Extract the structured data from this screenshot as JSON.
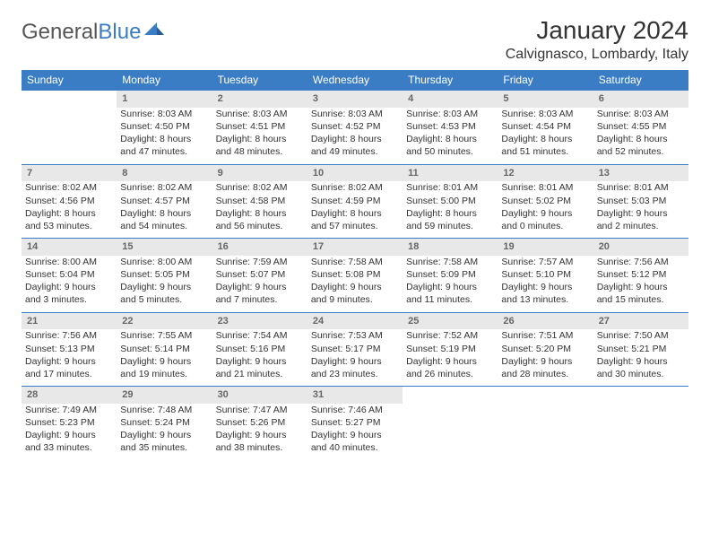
{
  "logo": {
    "part1": "General",
    "part2": "Blue"
  },
  "title": "January 2024",
  "location": "Calvignasco, Lombardy, Italy",
  "header_color": "#3b7dc4",
  "daynum_bg": "#e8e8e8",
  "border_color": "#3b7dc4",
  "weekdays": [
    "Sunday",
    "Monday",
    "Tuesday",
    "Wednesday",
    "Thursday",
    "Friday",
    "Saturday"
  ],
  "weeks": [
    [
      null,
      {
        "n": "1",
        "sr": "Sunrise: 8:03 AM",
        "ss": "Sunset: 4:50 PM",
        "d1": "Daylight: 8 hours",
        "d2": "and 47 minutes."
      },
      {
        "n": "2",
        "sr": "Sunrise: 8:03 AM",
        "ss": "Sunset: 4:51 PM",
        "d1": "Daylight: 8 hours",
        "d2": "and 48 minutes."
      },
      {
        "n": "3",
        "sr": "Sunrise: 8:03 AM",
        "ss": "Sunset: 4:52 PM",
        "d1": "Daylight: 8 hours",
        "d2": "and 49 minutes."
      },
      {
        "n": "4",
        "sr": "Sunrise: 8:03 AM",
        "ss": "Sunset: 4:53 PM",
        "d1": "Daylight: 8 hours",
        "d2": "and 50 minutes."
      },
      {
        "n": "5",
        "sr": "Sunrise: 8:03 AM",
        "ss": "Sunset: 4:54 PM",
        "d1": "Daylight: 8 hours",
        "d2": "and 51 minutes."
      },
      {
        "n": "6",
        "sr": "Sunrise: 8:03 AM",
        "ss": "Sunset: 4:55 PM",
        "d1": "Daylight: 8 hours",
        "d2": "and 52 minutes."
      }
    ],
    [
      {
        "n": "7",
        "sr": "Sunrise: 8:02 AM",
        "ss": "Sunset: 4:56 PM",
        "d1": "Daylight: 8 hours",
        "d2": "and 53 minutes."
      },
      {
        "n": "8",
        "sr": "Sunrise: 8:02 AM",
        "ss": "Sunset: 4:57 PM",
        "d1": "Daylight: 8 hours",
        "d2": "and 54 minutes."
      },
      {
        "n": "9",
        "sr": "Sunrise: 8:02 AM",
        "ss": "Sunset: 4:58 PM",
        "d1": "Daylight: 8 hours",
        "d2": "and 56 minutes."
      },
      {
        "n": "10",
        "sr": "Sunrise: 8:02 AM",
        "ss": "Sunset: 4:59 PM",
        "d1": "Daylight: 8 hours",
        "d2": "and 57 minutes."
      },
      {
        "n": "11",
        "sr": "Sunrise: 8:01 AM",
        "ss": "Sunset: 5:00 PM",
        "d1": "Daylight: 8 hours",
        "d2": "and 59 minutes."
      },
      {
        "n": "12",
        "sr": "Sunrise: 8:01 AM",
        "ss": "Sunset: 5:02 PM",
        "d1": "Daylight: 9 hours",
        "d2": "and 0 minutes."
      },
      {
        "n": "13",
        "sr": "Sunrise: 8:01 AM",
        "ss": "Sunset: 5:03 PM",
        "d1": "Daylight: 9 hours",
        "d2": "and 2 minutes."
      }
    ],
    [
      {
        "n": "14",
        "sr": "Sunrise: 8:00 AM",
        "ss": "Sunset: 5:04 PM",
        "d1": "Daylight: 9 hours",
        "d2": "and 3 minutes."
      },
      {
        "n": "15",
        "sr": "Sunrise: 8:00 AM",
        "ss": "Sunset: 5:05 PM",
        "d1": "Daylight: 9 hours",
        "d2": "and 5 minutes."
      },
      {
        "n": "16",
        "sr": "Sunrise: 7:59 AM",
        "ss": "Sunset: 5:07 PM",
        "d1": "Daylight: 9 hours",
        "d2": "and 7 minutes."
      },
      {
        "n": "17",
        "sr": "Sunrise: 7:58 AM",
        "ss": "Sunset: 5:08 PM",
        "d1": "Daylight: 9 hours",
        "d2": "and 9 minutes."
      },
      {
        "n": "18",
        "sr": "Sunrise: 7:58 AM",
        "ss": "Sunset: 5:09 PM",
        "d1": "Daylight: 9 hours",
        "d2": "and 11 minutes."
      },
      {
        "n": "19",
        "sr": "Sunrise: 7:57 AM",
        "ss": "Sunset: 5:10 PM",
        "d1": "Daylight: 9 hours",
        "d2": "and 13 minutes."
      },
      {
        "n": "20",
        "sr": "Sunrise: 7:56 AM",
        "ss": "Sunset: 5:12 PM",
        "d1": "Daylight: 9 hours",
        "d2": "and 15 minutes."
      }
    ],
    [
      {
        "n": "21",
        "sr": "Sunrise: 7:56 AM",
        "ss": "Sunset: 5:13 PM",
        "d1": "Daylight: 9 hours",
        "d2": "and 17 minutes."
      },
      {
        "n": "22",
        "sr": "Sunrise: 7:55 AM",
        "ss": "Sunset: 5:14 PM",
        "d1": "Daylight: 9 hours",
        "d2": "and 19 minutes."
      },
      {
        "n": "23",
        "sr": "Sunrise: 7:54 AM",
        "ss": "Sunset: 5:16 PM",
        "d1": "Daylight: 9 hours",
        "d2": "and 21 minutes."
      },
      {
        "n": "24",
        "sr": "Sunrise: 7:53 AM",
        "ss": "Sunset: 5:17 PM",
        "d1": "Daylight: 9 hours",
        "d2": "and 23 minutes."
      },
      {
        "n": "25",
        "sr": "Sunrise: 7:52 AM",
        "ss": "Sunset: 5:19 PM",
        "d1": "Daylight: 9 hours",
        "d2": "and 26 minutes."
      },
      {
        "n": "26",
        "sr": "Sunrise: 7:51 AM",
        "ss": "Sunset: 5:20 PM",
        "d1": "Daylight: 9 hours",
        "d2": "and 28 minutes."
      },
      {
        "n": "27",
        "sr": "Sunrise: 7:50 AM",
        "ss": "Sunset: 5:21 PM",
        "d1": "Daylight: 9 hours",
        "d2": "and 30 minutes."
      }
    ],
    [
      {
        "n": "28",
        "sr": "Sunrise: 7:49 AM",
        "ss": "Sunset: 5:23 PM",
        "d1": "Daylight: 9 hours",
        "d2": "and 33 minutes."
      },
      {
        "n": "29",
        "sr": "Sunrise: 7:48 AM",
        "ss": "Sunset: 5:24 PM",
        "d1": "Daylight: 9 hours",
        "d2": "and 35 minutes."
      },
      {
        "n": "30",
        "sr": "Sunrise: 7:47 AM",
        "ss": "Sunset: 5:26 PM",
        "d1": "Daylight: 9 hours",
        "d2": "and 38 minutes."
      },
      {
        "n": "31",
        "sr": "Sunrise: 7:46 AM",
        "ss": "Sunset: 5:27 PM",
        "d1": "Daylight: 9 hours",
        "d2": "and 40 minutes."
      },
      null,
      null,
      null
    ]
  ]
}
